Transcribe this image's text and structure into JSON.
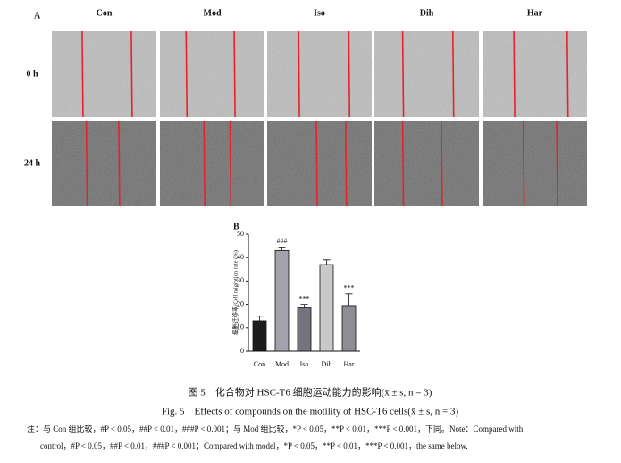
{
  "panel_a": {
    "label": "A",
    "columns": [
      "Con",
      "Mod",
      "Iso",
      "Dih",
      "Har"
    ],
    "rows": [
      "0 h",
      "24 h"
    ]
  },
  "chart_data": {
    "type": "bar",
    "panel_label": "B",
    "categories": [
      "Con",
      "Mod",
      "Iso",
      "Dih",
      "Har"
    ],
    "values": [
      13,
      43,
      18.5,
      37,
      19.5
    ],
    "errors": [
      2,
      1.5,
      1.5,
      2,
      5
    ],
    "colors": [
      "#1c1c1c",
      "#a3a3ad",
      "#74747e",
      "#c9c9c9",
      "#8d8d96"
    ],
    "annotations": [
      null,
      "###",
      "***",
      null,
      "***"
    ],
    "ylabel": "细胞迁移率/Cell migration rate (%)",
    "ylim": [
      0,
      50
    ],
    "yticks": [
      0,
      10,
      20,
      30,
      40,
      50
    ]
  },
  "caption_cn": "图 5　化合物对 HSC-T6 细胞运动能力的影响(x̄ ± s, n = 3)",
  "caption_en": "Fig. 5　Effects of compounds on the motility of HSC-T6 cells(x̄ ± s, n = 3)",
  "note": [
    "注：与 Con 组比较，#P < 0.05，##P < 0.01，###P < 0.001；与 Mod 组比较，*P < 0.05，**P < 0.01，***P < 0.001，下同。Note：Compared with",
    "control，#P < 0.05，##P < 0.01，###P < 0.001；Compared with model，*P < 0.05，**P < 0.01，***P < 0.001，the same below."
  ]
}
